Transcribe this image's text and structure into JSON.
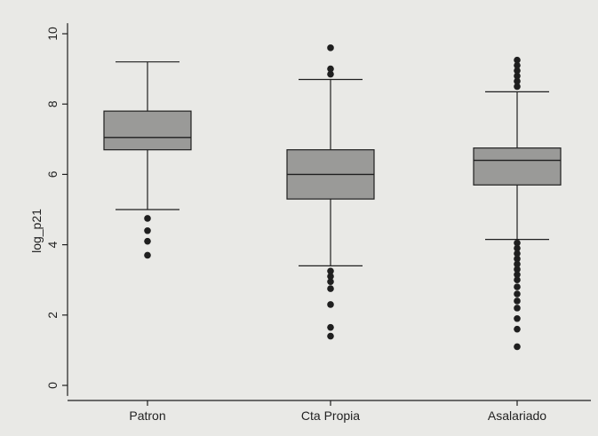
{
  "chart_data": {
    "type": "box",
    "title": "",
    "xlabel": "",
    "ylabel": "log_p21",
    "ylim": [
      -0.3,
      10.3
    ],
    "y_ticks": [
      0,
      2,
      4,
      6,
      8,
      10
    ],
    "grid": false,
    "categories": [
      "Patron",
      "Cta Propia",
      "Asalariado"
    ],
    "boxes": [
      {
        "category": "Patron",
        "whisker_low": 5.0,
        "q1": 6.7,
        "median": 7.05,
        "q3": 7.8,
        "whisker_high": 9.2,
        "outliers": [
          3.7,
          4.1,
          4.4,
          4.75
        ]
      },
      {
        "category": "Cta Propia",
        "whisker_low": 3.4,
        "q1": 5.3,
        "median": 6.0,
        "q3": 6.7,
        "whisker_high": 8.7,
        "outliers": [
          1.4,
          1.65,
          2.3,
          2.75,
          2.95,
          3.1,
          3.25,
          8.85,
          9.0,
          9.6
        ]
      },
      {
        "category": "Asalariado",
        "whisker_low": 4.15,
        "q1": 5.7,
        "median": 6.4,
        "q3": 6.75,
        "whisker_high": 8.35,
        "outliers": [
          1.1,
          1.6,
          1.9,
          2.2,
          2.4,
          2.6,
          2.8,
          3.0,
          3.15,
          3.3,
          3.45,
          3.6,
          3.75,
          3.9,
          4.05,
          8.5,
          8.65,
          8.8,
          8.95,
          9.1,
          9.25
        ]
      }
    ],
    "colors": {
      "background": "#e9e9e6",
      "box_fill": "#9a9a98",
      "stroke": "#1f1f1f",
      "point": "#1f1f1f"
    }
  }
}
